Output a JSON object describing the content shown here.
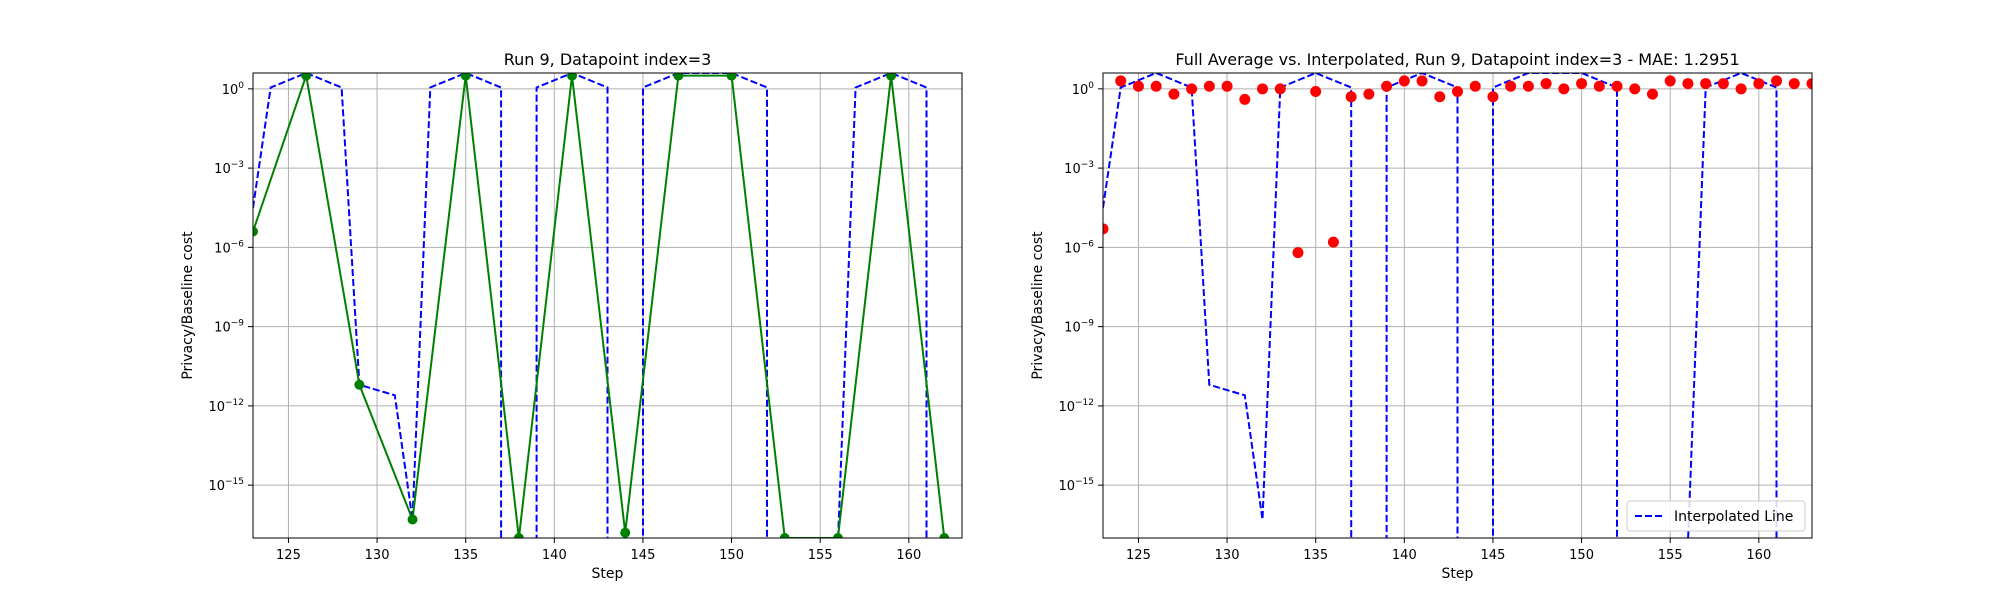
{
  "chart_data": [
    {
      "type": "line",
      "title": "Run 9, Datapoint index=3",
      "xlabel": "Step",
      "ylabel": "Privacy/Baseline cost",
      "xlim": [
        123,
        163
      ],
      "y_scale": "log",
      "ylim_exp": [
        -17,
        0.6
      ],
      "grid": true,
      "xticks": [
        125,
        130,
        135,
        140,
        145,
        150,
        155,
        160
      ],
      "yticks": [
        {
          "label": "10",
          "exp": "0",
          "value": 0
        },
        {
          "label": "10",
          "exp": "−3",
          "value": -3
        },
        {
          "label": "10",
          "exp": "−6",
          "value": -6
        },
        {
          "label": "10",
          "exp": "−9",
          "value": -9
        },
        {
          "label": "10",
          "exp": "−12",
          "value": -12
        },
        {
          "label": "10",
          "exp": "−15",
          "value": -15
        }
      ],
      "series": [
        {
          "style": "dashed",
          "color": "#0000ff",
          "x": [
            123,
            124,
            126,
            128,
            129,
            131,
            132,
            133,
            135,
            137,
            137,
            139,
            139,
            141,
            143,
            143,
            145,
            145,
            147,
            150,
            152,
            152,
            156,
            156,
            157,
            159,
            161,
            161,
            163
          ],
          "y_log10": [
            -4.5,
            0.05,
            0.6,
            0.05,
            -11.2,
            -11.6,
            -16.3,
            0.05,
            0.6,
            0.05,
            -17.2,
            -17.2,
            0.05,
            0.6,
            0.05,
            -17.2,
            -17.2,
            0.05,
            0.6,
            0.6,
            0.05,
            -17.2,
            -17.2,
            -17.2,
            0.05,
            0.6,
            0.05,
            -17.2,
            -17.2
          ]
        },
        {
          "style": "solid-markers",
          "color": "#008000",
          "x": [
            123,
            126,
            129,
            132,
            135,
            138,
            141,
            144,
            147,
            150,
            153,
            156,
            159,
            162
          ],
          "y_log10": [
            -5.4,
            0.5,
            -11.2,
            -16.3,
            0.5,
            -17.0,
            0.5,
            -16.8,
            0.5,
            0.5,
            -17.0,
            -17.0,
            0.5,
            -17.0
          ]
        }
      ]
    },
    {
      "type": "scatter",
      "title": "Full Average vs. Interpolated, Run 9, Datapoint index=3 - MAE: 1.2951",
      "xlabel": "Step",
      "ylabel": "Privacy/Baseline cost",
      "xlim": [
        123,
        163
      ],
      "y_scale": "log",
      "ylim_exp": [
        -17,
        0.6
      ],
      "grid": true,
      "legend_position": "bottom-right",
      "xticks": [
        125,
        130,
        135,
        140,
        145,
        150,
        155,
        160
      ],
      "yticks": [
        {
          "label": "10",
          "exp": "0",
          "value": 0
        },
        {
          "label": "10",
          "exp": "−3",
          "value": -3
        },
        {
          "label": "10",
          "exp": "−6",
          "value": -6
        },
        {
          "label": "10",
          "exp": "−9",
          "value": -9
        },
        {
          "label": "10",
          "exp": "−12",
          "value": -12
        },
        {
          "label": "10",
          "exp": "−15",
          "value": -15
        }
      ],
      "series": [
        {
          "name": "Interpolated Line",
          "style": "dashed",
          "color": "#0000ff",
          "x": [
            123,
            124,
            126,
            128,
            129,
            131,
            132,
            133,
            135,
            137,
            137,
            139,
            139,
            141,
            143,
            143,
            145,
            145,
            147,
            150,
            152,
            152,
            156,
            156,
            157,
            159,
            161,
            161,
            163
          ],
          "y_log10": [
            -4.5,
            0.05,
            0.6,
            0.05,
            -11.2,
            -11.6,
            -16.3,
            0.05,
            0.6,
            0.05,
            -17.2,
            -17.2,
            0.05,
            0.6,
            0.05,
            -17.2,
            -17.2,
            0.05,
            0.6,
            0.6,
            0.05,
            -17.2,
            -17.2,
            -17.2,
            0.05,
            0.6,
            0.05,
            -17.2,
            -17.2
          ]
        },
        {
          "style": "markers",
          "color": "#ff0000",
          "x": [
            123,
            124,
            125,
            126,
            127,
            128,
            129,
            130,
            131,
            132,
            133,
            134,
            135,
            136,
            137,
            138,
            139,
            140,
            141,
            142,
            143,
            144,
            145,
            146,
            147,
            148,
            149,
            150,
            151,
            152,
            153,
            154,
            155,
            156,
            157,
            158,
            159,
            160,
            161,
            162,
            163
          ],
          "y_log10": [
            -5.3,
            0.3,
            0.1,
            0.1,
            -0.2,
            0.0,
            0.1,
            0.1,
            -0.4,
            0.0,
            0.0,
            -6.2,
            -0.1,
            -5.8,
            -0.3,
            -0.2,
            0.1,
            0.3,
            0.3,
            -0.3,
            -0.1,
            0.1,
            -0.3,
            0.1,
            0.1,
            0.2,
            0.0,
            0.2,
            0.1,
            0.1,
            0.0,
            -0.2,
            0.3,
            0.2,
            0.2,
            0.2,
            -0.0,
            0.2,
            0.3,
            0.2,
            0.2
          ]
        }
      ]
    }
  ]
}
